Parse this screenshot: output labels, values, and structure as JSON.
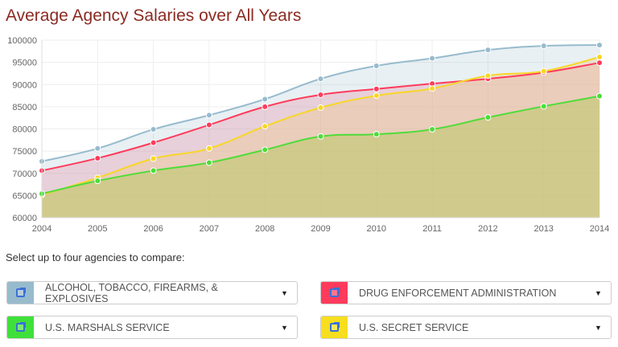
{
  "title": "Average Agency Salaries over All Years",
  "prompt": "Select up to four agencies to compare:",
  "chart_data": {
    "type": "area",
    "title": "Average Agency Salaries over All Years",
    "x": [
      2004,
      2005,
      2006,
      2007,
      2008,
      2009,
      2010,
      2011,
      2012,
      2013,
      2014
    ],
    "ylim": [
      60000,
      100000
    ],
    "yticks": [
      60000,
      65000,
      70000,
      75000,
      80000,
      85000,
      90000,
      95000,
      100000
    ],
    "grid": true,
    "series": [
      {
        "key": "atf",
        "color": "#97bbcd",
        "fill": "rgba(151,187,205,0.22)",
        "values": [
          72700,
          75600,
          79900,
          83100,
          86700,
          91300,
          94200,
          95900,
          97800,
          98700,
          98900
        ]
      },
      {
        "key": "dea",
        "color": "#ff3b5c",
        "fill": "rgba(230,150,165,0.35)",
        "values": [
          70600,
          73400,
          76900,
          80900,
          85000,
          87700,
          89000,
          90200,
          91300,
          92700,
          94900
        ]
      },
      {
        "key": "usss",
        "color": "#f7d727",
        "fill": "rgba(240,200,130,0.35)",
        "values": [
          65100,
          69000,
          73300,
          75600,
          80600,
          84800,
          87500,
          89100,
          92000,
          93000,
          96200
        ]
      },
      {
        "key": "usms",
        "color": "#4fdc3a",
        "fill": "rgba(190,200,110,0.6)",
        "values": [
          65400,
          68300,
          70600,
          72400,
          75300,
          78300,
          78800,
          79900,
          82600,
          85100,
          87400
        ]
      }
    ]
  },
  "selectors": [
    {
      "label": "ALCOHOL, TOBACCO, FIREARMS, & EXPLOSIVES",
      "color": "#97bbcd"
    },
    {
      "label": "DRUG ENFORCEMENT ADMINISTRATION",
      "color": "#ff3b5c"
    },
    {
      "label": "U.S. MARSHALS SERVICE",
      "color": "#3fe03a"
    },
    {
      "label": "U.S. SECRET SERVICE",
      "color": "#f7de1e"
    }
  ],
  "caret": "▼"
}
